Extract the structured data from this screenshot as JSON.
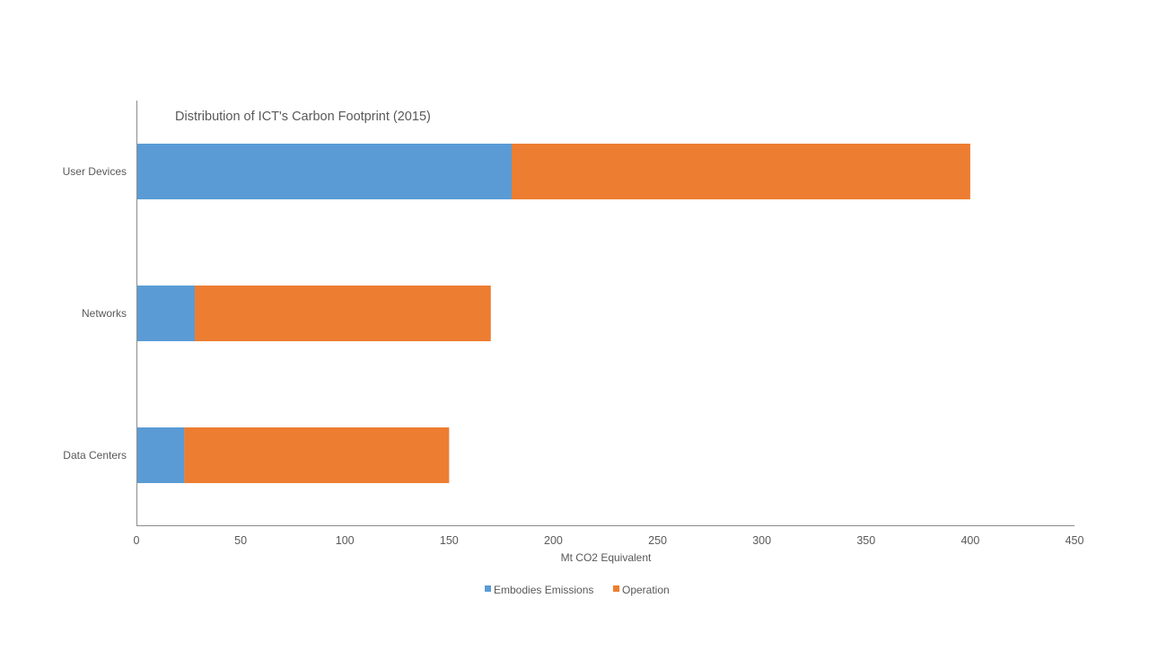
{
  "chart_data": {
    "type": "bar",
    "orientation": "horizontal",
    "stacked": true,
    "title": "Distribution of ICT's Carbon Footprint (2015)",
    "xlabel": "Mt CO2 Equivalent",
    "ylabel": "",
    "categories": [
      "User Devices",
      "Networks",
      "Data Centers"
    ],
    "series": [
      {
        "name": "Embodies Emissions",
        "values": [
          180,
          28,
          23
        ],
        "color": "#5B9BD5"
      },
      {
        "name": "Operation",
        "values": [
          220,
          142,
          127
        ],
        "color": "#ED7D31"
      }
    ],
    "xlim": [
      0,
      450
    ],
    "xticks": [
      0,
      50,
      100,
      150,
      200,
      250,
      300,
      350,
      400,
      450
    ],
    "grid": false,
    "legend": "bottom"
  }
}
